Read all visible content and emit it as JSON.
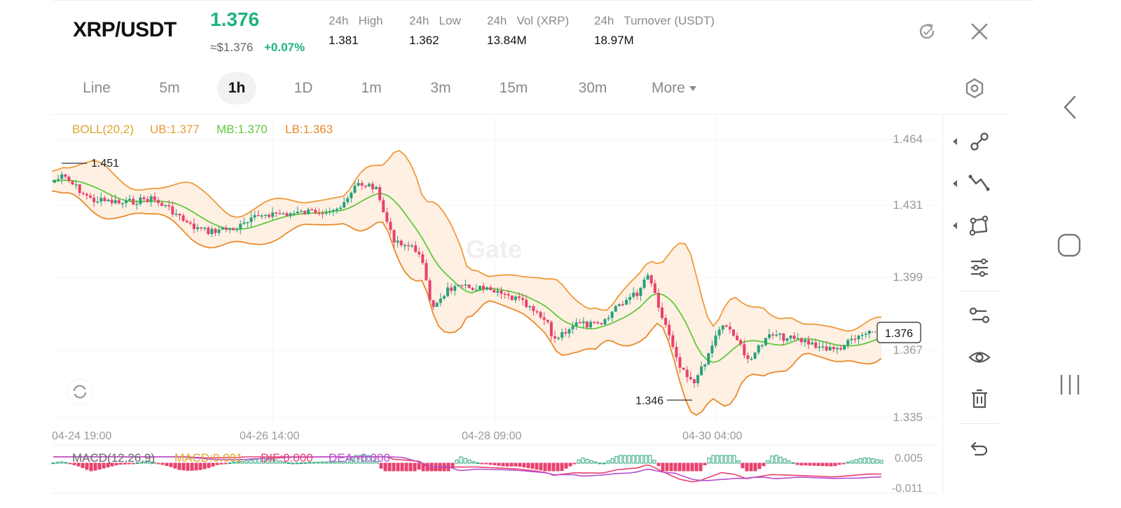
{
  "header": {
    "pair": "XRP/USDT",
    "price": "1.376",
    "fiat": "≈$1.376",
    "change": "+0.07%",
    "stats": [
      {
        "label": "24h   High",
        "value": "1.381"
      },
      {
        "label": "24h   Low",
        "value": "1.362"
      },
      {
        "label": "24h   Vol (XRP)",
        "value": "13.84M"
      },
      {
        "label": "24h   Turnover (USDT)",
        "value": "18.97M"
      }
    ],
    "icons": [
      "refresh-icon",
      "close-icon"
    ]
  },
  "tabs": [
    {
      "label": "Line"
    },
    {
      "label": "5m"
    },
    {
      "label": "1h",
      "active": true
    },
    {
      "label": "1D"
    },
    {
      "label": "1m"
    },
    {
      "label": "3m"
    },
    {
      "label": "15m"
    },
    {
      "label": "30m"
    },
    {
      "label": "More"
    }
  ],
  "chart": {
    "boll_title": "BOLL(20,2)",
    "boll_ub": "UB:1.377",
    "boll_mb": "MB:1.370",
    "boll_lb": "LB:1.363",
    "high_marker": "1.451",
    "low_marker": "1.346",
    "last_price_tag": "1.376",
    "y_ticks": [
      "1.464",
      "1.431",
      "1.399",
      "1.367",
      "1.335"
    ],
    "x_ticks": [
      "04-24 19:00",
      "04-26 14:00",
      "04-28 09:00",
      "04-30 04:00"
    ],
    "macd_title": "MACD(12,26,9)",
    "macd_val": "MACD:0.001",
    "dif_val": "DIF:0.000",
    "dea_val": "DEA:-0.000",
    "macd_ticks": [
      "0.005",
      "-0.011"
    ],
    "watermark": "Gate",
    "colors": {
      "up": "#26a17b",
      "down": "#e8416c",
      "ub": "#ee9a3a",
      "mb": "#62c93d",
      "lb": "#e88a2a",
      "dif": "#e8416c",
      "dea": "#b44fd0",
      "boll_fill": "#fdebd9"
    }
  },
  "toolbar": [
    "trend-line-icon",
    "zigzag-icon",
    "shape-icon",
    "indicator-settings-icon",
    "chart-layout-icon",
    "visibility-icon",
    "delete-icon",
    "undo-icon"
  ],
  "system_nav": [
    "back-icon",
    "home-icon",
    "recents-icon"
  ]
}
